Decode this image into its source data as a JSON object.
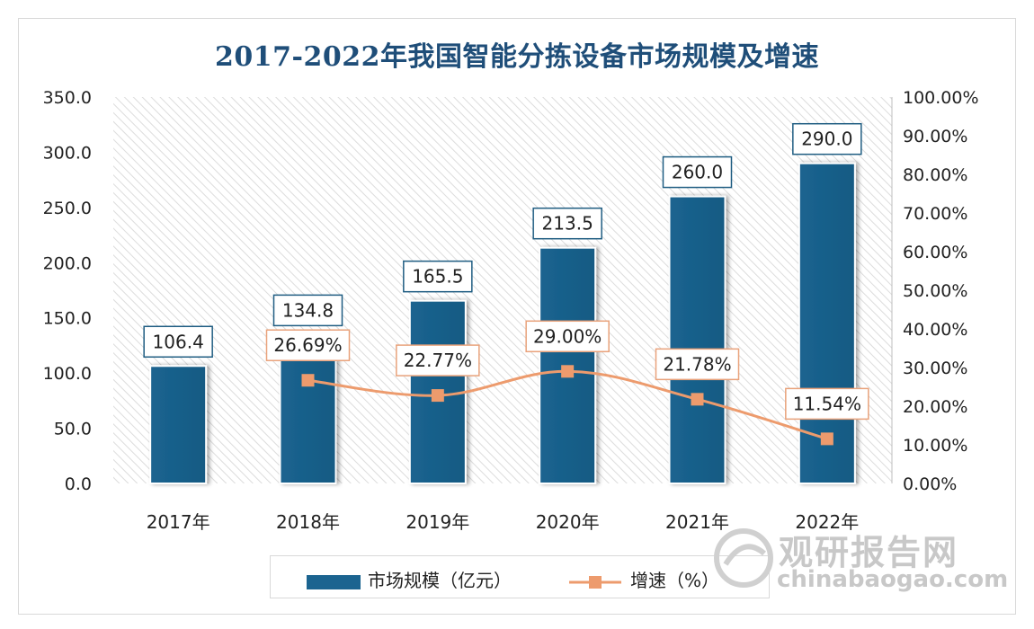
{
  "chart_data": {
    "type": "bar",
    "title": "2017-2022年我国智能分拣设备市场规模及增速",
    "categories": [
      "2017年",
      "2018年",
      "2019年",
      "2020年",
      "2021年",
      "2022年"
    ],
    "series": [
      {
        "name": "市场规模（亿元）",
        "type": "bar",
        "axis": "left",
        "color": "#1b6490",
        "values": [
          106.4,
          134.8,
          165.5,
          213.5,
          260.0,
          290.0
        ],
        "labels": [
          "106.4",
          "134.8",
          "165.5",
          "213.5",
          "260.0",
          "290.0"
        ]
      },
      {
        "name": "增速（%）",
        "type": "line",
        "axis": "right",
        "color": "#ed9b6d",
        "marker": "square",
        "x": [
          "2018年",
          "2019年",
          "2020年",
          "2021年",
          "2022年"
        ],
        "values": [
          26.69,
          22.77,
          29.0,
          21.78,
          11.54
        ],
        "labels": [
          "26.69%",
          "22.77%",
          "29.00%",
          "21.78%",
          "11.54%"
        ]
      }
    ],
    "y_left": {
      "range": [
        0,
        350
      ],
      "ticks": [
        "0.0",
        "50.0",
        "100.0",
        "150.0",
        "200.0",
        "250.0",
        "300.0",
        "350.0"
      ]
    },
    "y_right": {
      "range": [
        0,
        100
      ],
      "ticks": [
        "0.00%",
        "10.00%",
        "20.00%",
        "30.00%",
        "40.00%",
        "50.00%",
        "60.00%",
        "70.00%",
        "80.00%",
        "90.00%",
        "100.00%"
      ]
    },
    "grid": false,
    "plot_background": "diagonal-hatch",
    "legend": "bottom"
  },
  "watermark": {
    "name": "观研报告网",
    "url": "chinabaogao.com"
  }
}
